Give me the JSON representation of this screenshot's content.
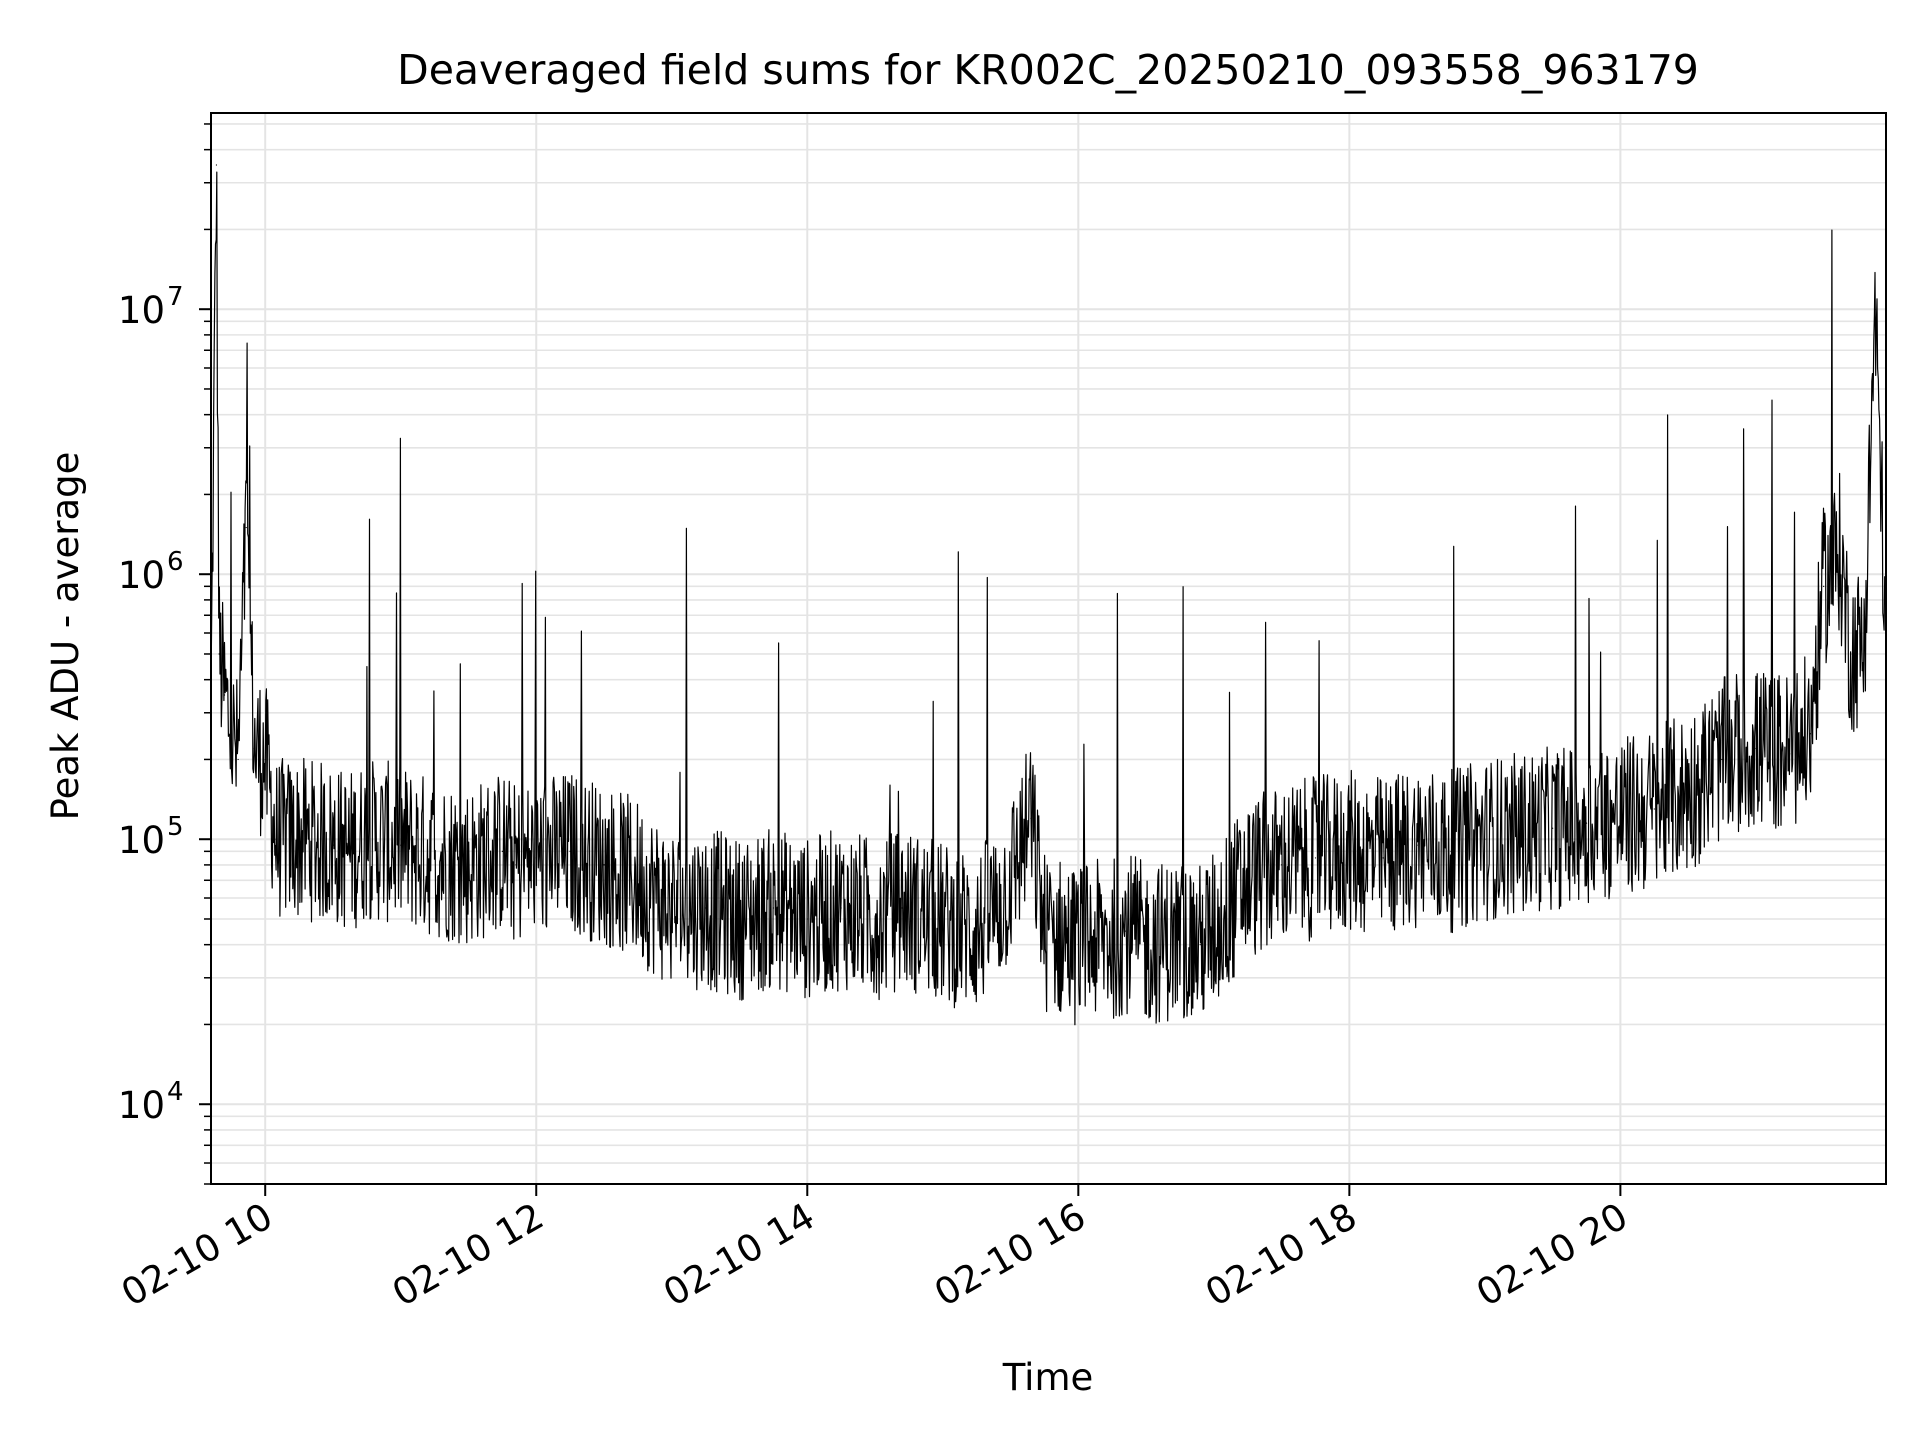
{
  "chart_data": {
    "type": "line",
    "title": "Deaveraged field sums for KR002C_20250210_093558_963179",
    "xlabel": "Time",
    "ylabel": "Peak ADU - average",
    "x_unit": "hours (2025-02-10)",
    "x_range": [
      9.6,
      21.96
    ],
    "yscale": "log",
    "ylim": [
      5000,
      55000000
    ],
    "grid": true,
    "x_ticks": [
      {
        "value": 10,
        "label": "02-10 10"
      },
      {
        "value": 12,
        "label": "02-10 12"
      },
      {
        "value": 14,
        "label": "02-10 14"
      },
      {
        "value": 16,
        "label": "02-10 16"
      },
      {
        "value": 18,
        "label": "02-10 18"
      },
      {
        "value": 20,
        "label": "02-10 20"
      }
    ],
    "y_ticks": [
      {
        "value": 10000,
        "base": "10",
        "exp": "4"
      },
      {
        "value": 100000,
        "base": "10",
        "exp": "5"
      },
      {
        "value": 1000000,
        "base": "10",
        "exp": "6"
      },
      {
        "value": 10000000,
        "base": "10",
        "exp": "7"
      }
    ],
    "series": [
      {
        "color": "#000000",
        "x": [
          9.6,
          9.64,
          9.66,
          9.7,
          9.75,
          9.8,
          9.86,
          9.92,
          10.0,
          10.08,
          10.15,
          10.3,
          10.5,
          10.62,
          10.75,
          11.0,
          11.25,
          11.5,
          11.75,
          11.85,
          12.0,
          12.25,
          12.5,
          12.75,
          12.9,
          13.0,
          13.25,
          13.5,
          13.75,
          14.0,
          14.25,
          14.5,
          14.7,
          15.0,
          15.25,
          15.45,
          15.65,
          15.75,
          16.0,
          16.25,
          16.35,
          16.5,
          16.75,
          16.9,
          17.0,
          17.25,
          17.5,
          17.75,
          18.0,
          18.25,
          18.5,
          18.75,
          19.0,
          19.25,
          19.5,
          19.75,
          20.0,
          20.25,
          20.5,
          20.75,
          21.0,
          21.25,
          21.4,
          21.5,
          21.62,
          21.7,
          21.8,
          21.88,
          21.96
        ],
        "values": [
          300000,
          35000000,
          500000,
          350000,
          250000,
          200000,
          1500000,
          220000,
          200000,
          100000,
          100000,
          100000,
          95000,
          90000,
          100000,
          95000,
          85000,
          80000,
          90000,
          80000,
          85000,
          90000,
          80000,
          70000,
          60000,
          55000,
          55000,
          50000,
          55000,
          50000,
          55000,
          50000,
          55000,
          48000,
          45000,
          60000,
          120000,
          45000,
          40000,
          42000,
          45000,
          40000,
          42000,
          40000,
          45000,
          70000,
          80000,
          85000,
          90000,
          85000,
          95000,
          90000,
          100000,
          105000,
          110000,
          115000,
          120000,
          130000,
          150000,
          200000,
          220000,
          210000,
          250000,
          900000,
          1200000,
          500000,
          550000,
          10000000,
          600000
        ]
      }
    ]
  }
}
